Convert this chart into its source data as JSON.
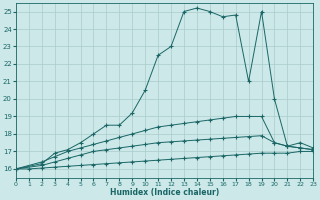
{
  "xlabel": "Humidex (Indice chaleur)",
  "bg_color": "#cce8e8",
  "grid_color": "#aacccc",
  "line_color": "#1a6666",
  "xlim": [
    0,
    23
  ],
  "ylim": [
    15.5,
    25.5
  ],
  "yticks": [
    16,
    17,
    18,
    19,
    20,
    21,
    22,
    23,
    24,
    25
  ],
  "xticks": [
    0,
    1,
    2,
    3,
    4,
    5,
    6,
    7,
    8,
    9,
    10,
    11,
    12,
    13,
    14,
    15,
    16,
    17,
    18,
    19,
    20,
    21,
    22,
    23
  ],
  "lines": [
    {
      "x": [
        0,
        1,
        2,
        3,
        4,
        5,
        6,
        7,
        8,
        9,
        10,
        11,
        12,
        13,
        14,
        15,
        16,
        17,
        18,
        19,
        20,
        21,
        22,
        23
      ],
      "y": [
        16.0,
        16.0,
        16.05,
        16.1,
        16.15,
        16.2,
        16.25,
        16.3,
        16.35,
        16.4,
        16.45,
        16.5,
        16.55,
        16.6,
        16.65,
        16.7,
        16.75,
        16.8,
        16.85,
        16.9,
        16.9,
        16.9,
        17.0,
        17.0
      ]
    },
    {
      "x": [
        0,
        2,
        3,
        4,
        5,
        6,
        7,
        8,
        9,
        10,
        11,
        12,
        13,
        14,
        15,
        16,
        17,
        18,
        19,
        20,
        21,
        22,
        23
      ],
      "y": [
        16.0,
        16.2,
        16.4,
        16.6,
        16.8,
        17.0,
        17.1,
        17.2,
        17.3,
        17.4,
        17.5,
        17.55,
        17.6,
        17.65,
        17.7,
        17.75,
        17.8,
        17.85,
        17.9,
        17.5,
        17.3,
        17.2,
        17.1
      ]
    },
    {
      "x": [
        0,
        2,
        3,
        4,
        5,
        6,
        7,
        8,
        9,
        10,
        11,
        12,
        13,
        14,
        15,
        16,
        17,
        18,
        19,
        20,
        21,
        22,
        23
      ],
      "y": [
        16.0,
        16.4,
        16.7,
        17.0,
        17.2,
        17.4,
        17.6,
        17.8,
        18.0,
        18.2,
        18.4,
        18.5,
        18.6,
        18.7,
        18.8,
        18.9,
        19.0,
        19.0,
        19.0,
        17.5,
        17.3,
        17.2,
        17.1
      ]
    },
    {
      "x": [
        0,
        2,
        3,
        4,
        5,
        6,
        7,
        8,
        9,
        10,
        11,
        12,
        13,
        14,
        15,
        16,
        17,
        18,
        19,
        20,
        21,
        22,
        23
      ],
      "y": [
        16.0,
        16.3,
        16.9,
        17.1,
        17.5,
        18.0,
        18.5,
        18.5,
        19.2,
        20.5,
        22.5,
        23.0,
        25.0,
        25.2,
        25.0,
        24.7,
        24.8,
        21.0,
        25.0,
        20.0,
        17.3,
        17.5,
        17.2
      ]
    }
  ]
}
